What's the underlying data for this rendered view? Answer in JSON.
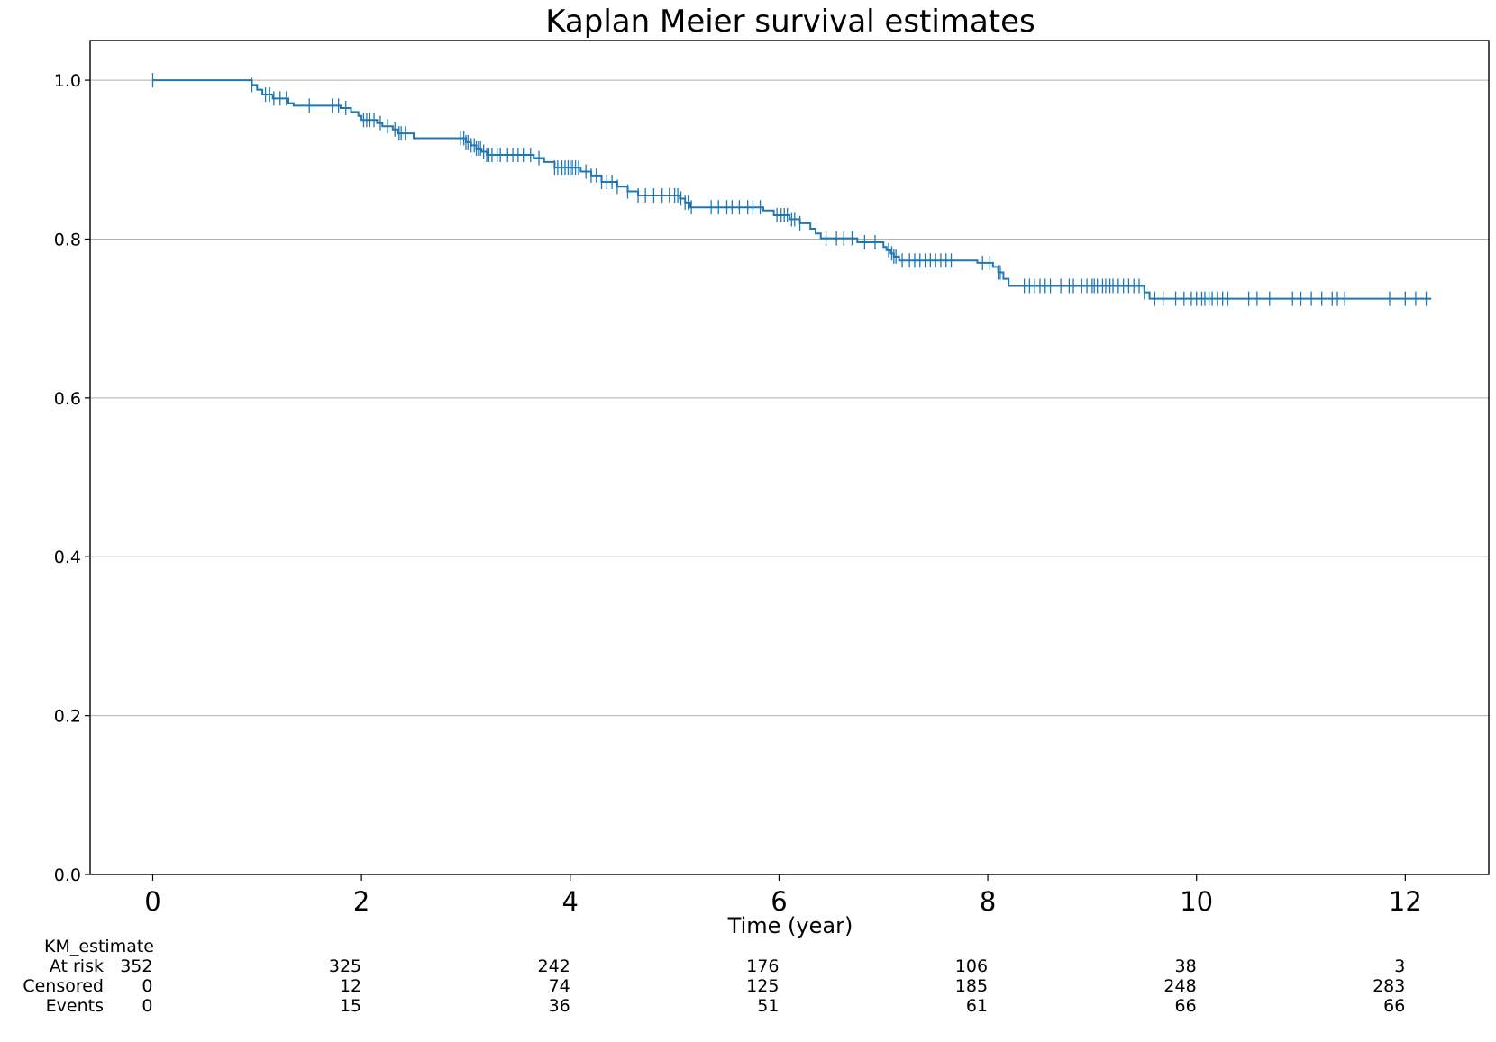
{
  "chart_data": {
    "type": "line",
    "title": "Kaplan Meier survival estimates",
    "xlabel": "Time (year)",
    "ylabel": "",
    "xlim": [
      -0.6,
      12.8
    ],
    "ylim": [
      0.0,
      1.05
    ],
    "x_ticks": [
      0,
      2,
      4,
      6,
      8,
      10,
      12
    ],
    "y_ticks": [
      0.0,
      0.2,
      0.4,
      0.6,
      0.8,
      1.0
    ],
    "y_tick_labels": [
      "0.0",
      "0.2",
      "0.4",
      "0.6",
      "0.8",
      "1.0"
    ],
    "grid": "horizontal",
    "line_color": "#1f77b4",
    "series": [
      {
        "estimate": [
          [
            0,
            1.0
          ],
          [
            0.95,
            0.994
          ],
          [
            1.0,
            0.988
          ],
          [
            1.05,
            0.982
          ],
          [
            1.15,
            0.977
          ],
          [
            1.3,
            0.971
          ],
          [
            1.35,
            0.968
          ],
          [
            1.8,
            0.965
          ],
          [
            1.9,
            0.96
          ],
          [
            1.97,
            0.955
          ],
          [
            2.0,
            0.95
          ],
          [
            2.15,
            0.946
          ],
          [
            2.2,
            0.942
          ],
          [
            2.3,
            0.938
          ],
          [
            2.35,
            0.933
          ],
          [
            2.5,
            0.927
          ],
          [
            3.0,
            0.922
          ],
          [
            3.05,
            0.918
          ],
          [
            3.1,
            0.914
          ],
          [
            3.15,
            0.91
          ],
          [
            3.2,
            0.906
          ],
          [
            3.65,
            0.902
          ],
          [
            3.75,
            0.897
          ],
          [
            3.85,
            0.89
          ],
          [
            4.1,
            0.885
          ],
          [
            4.2,
            0.88
          ],
          [
            4.3,
            0.872
          ],
          [
            4.45,
            0.866
          ],
          [
            4.55,
            0.86
          ],
          [
            4.65,
            0.855
          ],
          [
            5.05,
            0.851
          ],
          [
            5.1,
            0.846
          ],
          [
            5.15,
            0.84
          ],
          [
            5.85,
            0.836
          ],
          [
            5.95,
            0.83
          ],
          [
            6.1,
            0.825
          ],
          [
            6.2,
            0.82
          ],
          [
            6.3,
            0.813
          ],
          [
            6.35,
            0.807
          ],
          [
            6.4,
            0.801
          ],
          [
            6.75,
            0.796
          ],
          [
            7.0,
            0.79
          ],
          [
            7.03,
            0.786
          ],
          [
            7.07,
            0.782
          ],
          [
            7.1,
            0.778
          ],
          [
            7.15,
            0.773
          ],
          [
            7.9,
            0.77
          ],
          [
            8.05,
            0.765
          ],
          [
            8.1,
            0.758
          ],
          [
            8.15,
            0.75
          ],
          [
            8.2,
            0.741
          ],
          [
            9.5,
            0.733
          ],
          [
            9.55,
            0.725
          ],
          [
            12.25,
            0.725
          ]
        ],
        "censored_times": [
          0,
          0.95,
          1.08,
          1.12,
          1.16,
          1.22,
          1.28,
          1.5,
          1.72,
          1.78,
          1.85,
          2.02,
          2.05,
          2.08,
          2.12,
          2.18,
          2.25,
          2.32,
          2.36,
          2.38,
          2.42,
          2.95,
          2.98,
          3.0,
          3.02,
          3.05,
          3.08,
          3.1,
          3.12,
          3.14,
          3.17,
          3.2,
          3.22,
          3.25,
          3.3,
          3.33,
          3.4,
          3.45,
          3.5,
          3.55,
          3.62,
          3.7,
          3.85,
          3.88,
          3.92,
          3.95,
          3.98,
          4.0,
          4.02,
          4.05,
          4.08,
          4.15,
          4.2,
          4.25,
          4.3,
          4.35,
          4.4,
          4.45,
          4.55,
          4.65,
          4.72,
          4.8,
          4.88,
          4.95,
          5.0,
          5.03,
          5.06,
          5.1,
          5.13,
          5.16,
          5.35,
          5.42,
          5.5,
          5.55,
          5.62,
          5.7,
          5.75,
          5.82,
          5.98,
          6.02,
          6.05,
          6.08,
          6.12,
          6.15,
          6.2,
          6.45,
          6.55,
          6.62,
          6.7,
          6.82,
          6.92,
          7.05,
          7.08,
          7.1,
          7.12,
          7.18,
          7.25,
          7.3,
          7.35,
          7.4,
          7.45,
          7.5,
          7.55,
          7.6,
          7.65,
          7.95,
          8.02,
          8.1,
          8.12,
          8.35,
          8.4,
          8.45,
          8.5,
          8.55,
          8.6,
          8.7,
          8.78,
          8.82,
          8.9,
          8.95,
          9.0,
          9.02,
          9.05,
          9.1,
          9.13,
          9.17,
          9.2,
          9.25,
          9.3,
          9.35,
          9.4,
          9.45,
          9.5,
          9.6,
          9.68,
          9.8,
          9.88,
          9.95,
          10.0,
          10.05,
          10.08,
          10.12,
          10.15,
          10.2,
          10.25,
          10.3,
          10.5,
          10.58,
          10.7,
          10.92,
          11.0,
          11.1,
          11.2,
          11.3,
          11.35,
          11.42,
          11.85,
          12.0,
          12.1,
          12.2
        ]
      }
    ],
    "risk_table": {
      "group_label": "KM_estimate",
      "time_points": [
        0,
        2,
        4,
        6,
        8,
        10,
        12
      ],
      "rows": [
        {
          "label": "At risk",
          "values": [
            "352",
            "325",
            "242",
            "176",
            "106",
            "38",
            "3"
          ]
        },
        {
          "label": "Censored",
          "values": [
            "0",
            "12",
            "74",
            "125",
            "185",
            "248",
            "283"
          ]
        },
        {
          "label": "Events",
          "values": [
            "0",
            "15",
            "36",
            "51",
            "61",
            "66",
            "66"
          ]
        }
      ]
    }
  }
}
